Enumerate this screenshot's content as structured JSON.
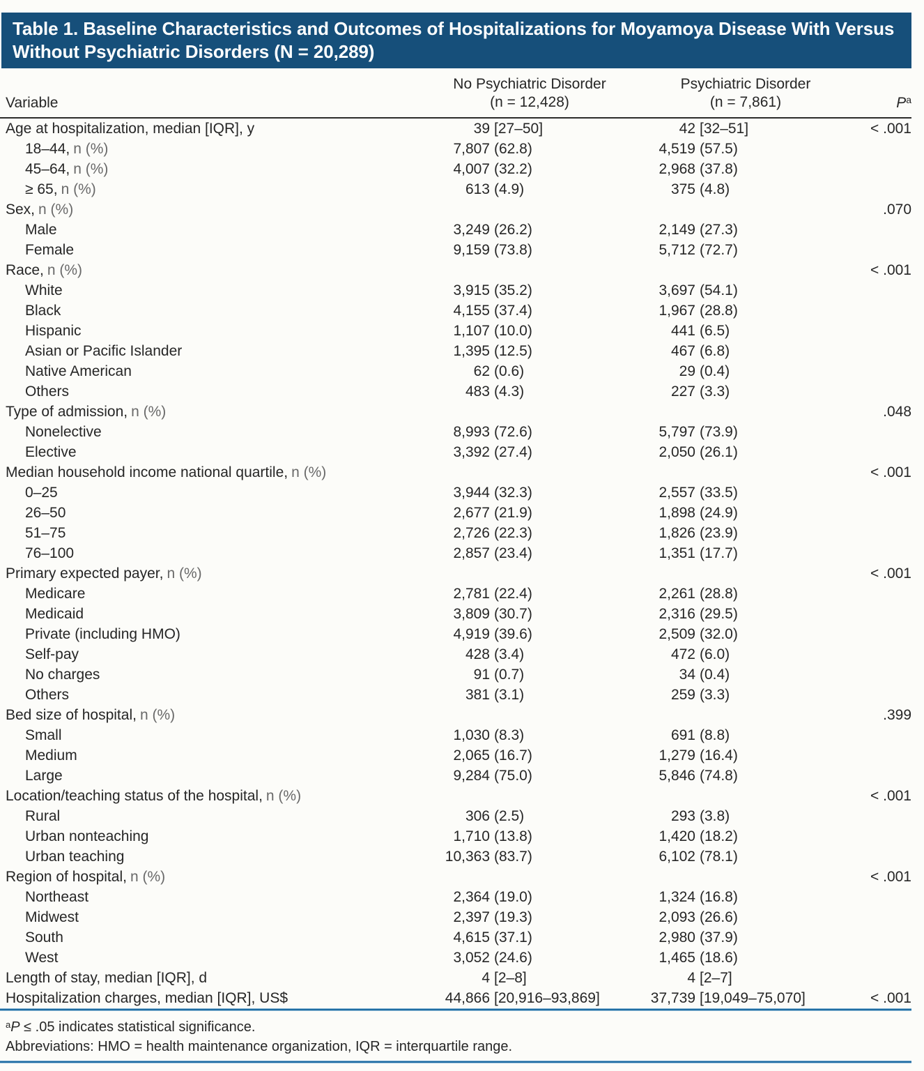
{
  "title": "Table 1. Baseline Characteristics and Outcomes of Hospitalizations for Moyamoya Disease With Versus Without Psychiatric Disorders (N = 20,289)",
  "columns": {
    "variable": "Variable",
    "group1_line1": "No Psychiatric Disorder",
    "group1_line2": "(n = 12,428)",
    "group2_line1": "Psychiatric Disorder",
    "group2_line2": "(n = 7,861)",
    "p_label": "P",
    "p_sup": "a"
  },
  "rows": [
    {
      "label": "Age at hospitalization, median [IQR], y",
      "suffix": "",
      "indent": 0,
      "v1n": "39",
      "v1p": "[27–50]",
      "v2n": "42",
      "v2p": "[32–51]",
      "p": "< .001"
    },
    {
      "label": "18–44,",
      "suffix": "n (%)",
      "indent": 1,
      "v1n": "7,807",
      "v1p": "(62.8)",
      "v2n": "4,519",
      "v2p": "(57.5)",
      "p": ""
    },
    {
      "label": "45–64,",
      "suffix": "n (%)",
      "indent": 1,
      "v1n": "4,007",
      "v1p": "(32.2)",
      "v2n": "2,968",
      "v2p": "(37.8)",
      "p": ""
    },
    {
      "label": "≥ 65,",
      "suffix": "n (%)",
      "indent": 1,
      "v1n": "613",
      "v1p": "(4.9)",
      "v2n": "375",
      "v2p": "(4.8)",
      "p": ""
    },
    {
      "label": "Sex,",
      "suffix": "n (%)",
      "indent": 0,
      "v1n": "",
      "v1p": "",
      "v2n": "",
      "v2p": "",
      "p": ".070"
    },
    {
      "label": "Male",
      "suffix": "",
      "indent": 1,
      "v1n": "3,249",
      "v1p": "(26.2)",
      "v2n": "2,149",
      "v2p": "(27.3)",
      "p": ""
    },
    {
      "label": "Female",
      "suffix": "",
      "indent": 1,
      "v1n": "9,159",
      "v1p": "(73.8)",
      "v2n": "5,712",
      "v2p": "(72.7)",
      "p": ""
    },
    {
      "label": "Race,",
      "suffix": "n (%)",
      "indent": 0,
      "v1n": "",
      "v1p": "",
      "v2n": "",
      "v2p": "",
      "p": "< .001"
    },
    {
      "label": "White",
      "suffix": "",
      "indent": 1,
      "v1n": "3,915",
      "v1p": "(35.2)",
      "v2n": "3,697",
      "v2p": "(54.1)",
      "p": ""
    },
    {
      "label": "Black",
      "suffix": "",
      "indent": 1,
      "v1n": "4,155",
      "v1p": "(37.4)",
      "v2n": "1,967",
      "v2p": "(28.8)",
      "p": ""
    },
    {
      "label": "Hispanic",
      "suffix": "",
      "indent": 1,
      "v1n": "1,107",
      "v1p": "(10.0)",
      "v2n": "441",
      "v2p": "(6.5)",
      "p": ""
    },
    {
      "label": "Asian or Pacific Islander",
      "suffix": "",
      "indent": 1,
      "v1n": "1,395",
      "v1p": "(12.5)",
      "v2n": "467",
      "v2p": "(6.8)",
      "p": ""
    },
    {
      "label": "Native American",
      "suffix": "",
      "indent": 1,
      "v1n": "62",
      "v1p": "(0.6)",
      "v2n": "29",
      "v2p": "(0.4)",
      "p": ""
    },
    {
      "label": "Others",
      "suffix": "",
      "indent": 1,
      "v1n": "483",
      "v1p": "(4.3)",
      "v2n": "227",
      "v2p": "(3.3)",
      "p": ""
    },
    {
      "label": "Type of admission,",
      "suffix": "n (%)",
      "indent": 0,
      "v1n": "",
      "v1p": "",
      "v2n": "",
      "v2p": "",
      "p": ".048"
    },
    {
      "label": "Nonelective",
      "suffix": "",
      "indent": 1,
      "v1n": "8,993",
      "v1p": "(72.6)",
      "v2n": "5,797",
      "v2p": "(73.9)",
      "p": ""
    },
    {
      "label": "Elective",
      "suffix": "",
      "indent": 1,
      "v1n": "3,392",
      "v1p": "(27.4)",
      "v2n": "2,050",
      "v2p": "(26.1)",
      "p": ""
    },
    {
      "label": "Median household income national quartile,",
      "suffix": "n (%)",
      "indent": 0,
      "v1n": "",
      "v1p": "",
      "v2n": "",
      "v2p": "",
      "p": "< .001"
    },
    {
      "label": "0–25",
      "suffix": "",
      "indent": 1,
      "v1n": "3,944",
      "v1p": "(32.3)",
      "v2n": "2,557",
      "v2p": "(33.5)",
      "p": ""
    },
    {
      "label": "26–50",
      "suffix": "",
      "indent": 1,
      "v1n": "2,677",
      "v1p": "(21.9)",
      "v2n": "1,898",
      "v2p": "(24.9)",
      "p": ""
    },
    {
      "label": "51–75",
      "suffix": "",
      "indent": 1,
      "v1n": "2,726",
      "v1p": "(22.3)",
      "v2n": "1,826",
      "v2p": "(23.9)",
      "p": ""
    },
    {
      "label": "76–100",
      "suffix": "",
      "indent": 1,
      "v1n": "2,857",
      "v1p": "(23.4)",
      "v2n": "1,351",
      "v2p": "(17.7)",
      "p": ""
    },
    {
      "label": "Primary expected payer,",
      "suffix": "n (%)",
      "indent": 0,
      "v1n": "",
      "v1p": "",
      "v2n": "",
      "v2p": "",
      "p": "< .001"
    },
    {
      "label": "Medicare",
      "suffix": "",
      "indent": 1,
      "v1n": "2,781",
      "v1p": "(22.4)",
      "v2n": "2,261",
      "v2p": "(28.8)",
      "p": ""
    },
    {
      "label": "Medicaid",
      "suffix": "",
      "indent": 1,
      "v1n": "3,809",
      "v1p": "(30.7)",
      "v2n": "2,316",
      "v2p": "(29.5)",
      "p": ""
    },
    {
      "label": "Private (including HMO)",
      "suffix": "",
      "indent": 1,
      "v1n": "4,919",
      "v1p": "(39.6)",
      "v2n": "2,509",
      "v2p": "(32.0)",
      "p": ""
    },
    {
      "label": "Self-pay",
      "suffix": "",
      "indent": 1,
      "v1n": "428",
      "v1p": "(3.4)",
      "v2n": "472",
      "v2p": "(6.0)",
      "p": ""
    },
    {
      "label": "No charges",
      "suffix": "",
      "indent": 1,
      "v1n": "91",
      "v1p": "(0.7)",
      "v2n": "34",
      "v2p": "(0.4)",
      "p": ""
    },
    {
      "label": "Others",
      "suffix": "",
      "indent": 1,
      "v1n": "381",
      "v1p": "(3.1)",
      "v2n": "259",
      "v2p": "(3.3)",
      "p": ""
    },
    {
      "label": "Bed size of hospital,",
      "suffix": "n (%)",
      "indent": 0,
      "v1n": "",
      "v1p": "",
      "v2n": "",
      "v2p": "",
      "p": ".399"
    },
    {
      "label": "Small",
      "suffix": "",
      "indent": 1,
      "v1n": "1,030",
      "v1p": "(8.3)",
      "v2n": "691",
      "v2p": "(8.8)",
      "p": ""
    },
    {
      "label": "Medium",
      "suffix": "",
      "indent": 1,
      "v1n": "2,065",
      "v1p": "(16.7)",
      "v2n": "1,279",
      "v2p": "(16.4)",
      "p": ""
    },
    {
      "label": "Large",
      "suffix": "",
      "indent": 1,
      "v1n": "9,284",
      "v1p": "(75.0)",
      "v2n": "5,846",
      "v2p": "(74.8)",
      "p": ""
    },
    {
      "label": "Location/teaching status of the hospital,",
      "suffix": "n (%)",
      "indent": 0,
      "v1n": "",
      "v1p": "",
      "v2n": "",
      "v2p": "",
      "p": "< .001"
    },
    {
      "label": "Rural",
      "suffix": "",
      "indent": 1,
      "v1n": "306",
      "v1p": "(2.5)",
      "v2n": "293",
      "v2p": "(3.8)",
      "p": ""
    },
    {
      "label": "Urban nonteaching",
      "suffix": "",
      "indent": 1,
      "v1n": "1,710",
      "v1p": "(13.8)",
      "v2n": "1,420",
      "v2p": "(18.2)",
      "p": ""
    },
    {
      "label": "Urban teaching",
      "suffix": "",
      "indent": 1,
      "v1n": "10,363",
      "v1p": "(83.7)",
      "v2n": "6,102",
      "v2p": "(78.1)",
      "p": ""
    },
    {
      "label": "Region of hospital,",
      "suffix": "n (%)",
      "indent": 0,
      "v1n": "",
      "v1p": "",
      "v2n": "",
      "v2p": "",
      "p": "< .001"
    },
    {
      "label": "Northeast",
      "suffix": "",
      "indent": 1,
      "v1n": "2,364",
      "v1p": "(19.0)",
      "v2n": "1,324",
      "v2p": "(16.8)",
      "p": ""
    },
    {
      "label": "Midwest",
      "suffix": "",
      "indent": 1,
      "v1n": "2,397",
      "v1p": "(19.3)",
      "v2n": "2,093",
      "v2p": "(26.6)",
      "p": ""
    },
    {
      "label": "South",
      "suffix": "",
      "indent": 1,
      "v1n": "4,615",
      "v1p": "(37.1)",
      "v2n": "2,980",
      "v2p": "(37.9)",
      "p": ""
    },
    {
      "label": "West",
      "suffix": "",
      "indent": 1,
      "v1n": "3,052",
      "v1p": "(24.6)",
      "v2n": "1,465",
      "v2p": "(18.6)",
      "p": ""
    },
    {
      "label": "Length of stay, median [IQR], d",
      "suffix": "",
      "indent": 0,
      "v1n": "4",
      "v1p": "[2–8]",
      "v2n": "4",
      "v2p": "[2–7]",
      "p": ""
    },
    {
      "label": "Hospitalization charges, median [IQR], US$",
      "suffix": "",
      "indent": 0,
      "v1n": "44,866",
      "v1p": "[20,916–93,869]",
      "v2n": "37,739",
      "v2p": "[19,049–75,070]",
      "p": "< .001"
    }
  ],
  "footnotes": {
    "sig_sup": "a",
    "sig_p": "P",
    "sig_rest": " ≤ .05 indicates statistical significance.",
    "abbrev": "Abbreviations: HMO = health maintenance organization, IQR = interquartile range."
  },
  "colors": {
    "header_bg": "#164f7a",
    "rule_blue": "#1e6ca2",
    "text": "#262626"
  }
}
